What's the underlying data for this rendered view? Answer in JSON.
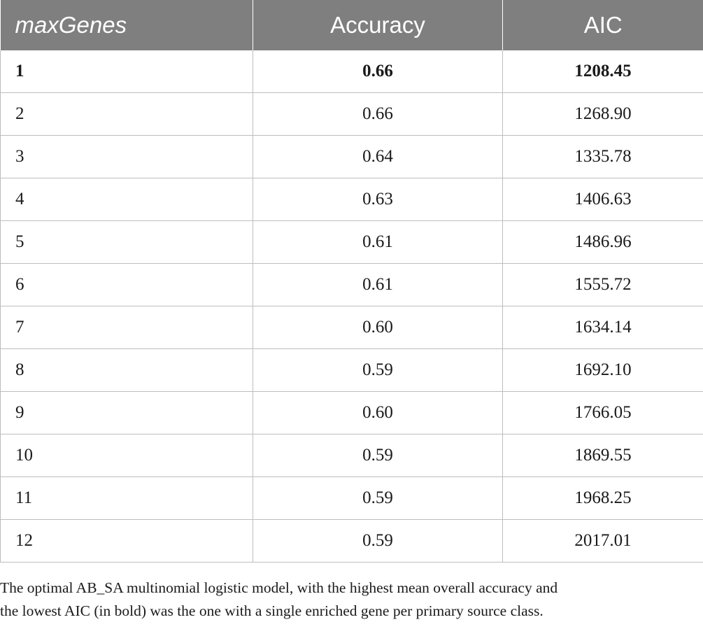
{
  "table": {
    "headers": [
      "maxGenes",
      "Accuracy",
      "AIC"
    ],
    "rows": [
      {
        "maxGenes": "1",
        "accuracy": "0.66",
        "aic": "1208.45",
        "bold": true
      },
      {
        "maxGenes": "2",
        "accuracy": "0.66",
        "aic": "1268.90",
        "bold": false
      },
      {
        "maxGenes": "3",
        "accuracy": "0.64",
        "aic": "1335.78",
        "bold": false
      },
      {
        "maxGenes": "4",
        "accuracy": "0.63",
        "aic": "1406.63",
        "bold": false
      },
      {
        "maxGenes": "5",
        "accuracy": "0.61",
        "aic": "1486.96",
        "bold": false
      },
      {
        "maxGenes": "6",
        "accuracy": "0.61",
        "aic": "1555.72",
        "bold": false
      },
      {
        "maxGenes": "7",
        "accuracy": "0.60",
        "aic": "1634.14",
        "bold": false
      },
      {
        "maxGenes": "8",
        "accuracy": "0.59",
        "aic": "1692.10",
        "bold": false
      },
      {
        "maxGenes": "9",
        "accuracy": "0.60",
        "aic": "1766.05",
        "bold": false
      },
      {
        "maxGenes": "10",
        "accuracy": "0.59",
        "aic": "1869.55",
        "bold": false
      },
      {
        "maxGenes": "11",
        "accuracy": "0.59",
        "aic": "1968.25",
        "bold": false
      },
      {
        "maxGenes": "12",
        "accuracy": "0.59",
        "aic": "2017.01",
        "bold": false
      }
    ]
  },
  "caption": {
    "line1": "The optimal AB_SA multinomial logistic model, with the highest mean overall accuracy and",
    "line2": "the lowest AIC (in bold) was the one with a single enriched gene per primary source class."
  },
  "colors": {
    "header_bg": "#7f7f7f",
    "header_text": "#ffffff",
    "grid": "#bdbdbd"
  }
}
